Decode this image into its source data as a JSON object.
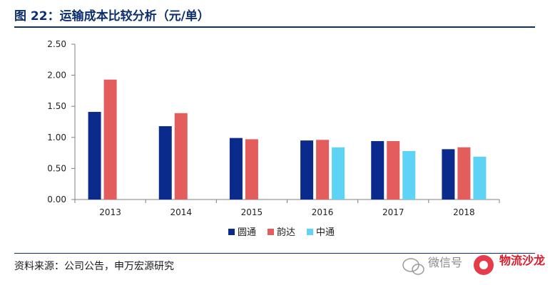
{
  "figure": {
    "title": "图 22：运输成本比较分析（元/单）",
    "source": "资料来源：公司公告，申万宏源研究"
  },
  "watermark": {
    "text": "微信号",
    "brand": "物流沙龙"
  },
  "chart_data": {
    "type": "bar",
    "categories": [
      "2013",
      "2014",
      "2015",
      "2016",
      "2017",
      "2018"
    ],
    "series": [
      {
        "name": "圆通",
        "color": "#0a2a8c",
        "values": [
          1.41,
          1.18,
          0.99,
          0.95,
          0.94,
          0.81
        ]
      },
      {
        "name": "韵达",
        "color": "#e35d5d",
        "values": [
          1.93,
          1.39,
          0.97,
          0.96,
          0.94,
          0.84
        ]
      },
      {
        "name": "中通",
        "color": "#5fd3f5",
        "values": [
          null,
          null,
          null,
          0.84,
          0.78,
          0.69
        ]
      }
    ],
    "ylim": [
      0,
      2.5
    ],
    "yticks": [
      "0.00",
      "0.50",
      "1.00",
      "1.50",
      "2.00",
      "2.50"
    ],
    "grid": false,
    "legend_position": "bottom"
  }
}
